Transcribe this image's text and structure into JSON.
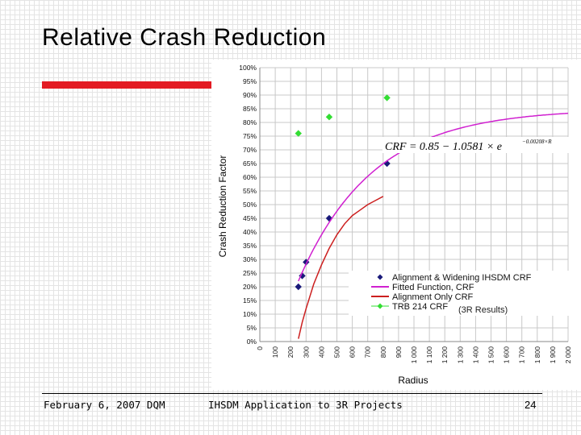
{
  "slide": {
    "title": "Relative Crash Reduction",
    "footer_date": "February 6, 2007 DQM",
    "footer_center": "IHSDM Application to 3R Projects",
    "page_number": "24",
    "accent_color": "#e31b23"
  },
  "chart_data": {
    "type": "scatter",
    "xlabel": "Radius",
    "ylabel": "Crash Reduction Factor",
    "xlim": [
      0,
      2000
    ],
    "ylim": [
      0,
      1.0
    ],
    "x_ticks": [
      0,
      100,
      200,
      300,
      400,
      500,
      600,
      700,
      800,
      900,
      1000,
      1100,
      1200,
      1300,
      1400,
      1500,
      1600,
      1700,
      1800,
      1900,
      2000
    ],
    "x_tick_labels": [
      "0",
      "100",
      "200",
      "300",
      "400",
      "500",
      "600",
      "700",
      "800",
      "900",
      "1 000",
      "1 100",
      "1 200",
      "1 300",
      "1 400",
      "1 500",
      "1 600",
      "1 700",
      "1 800",
      "1 900",
      "2 000"
    ],
    "y_ticks": [
      0,
      0.05,
      0.1,
      0.15,
      0.2,
      0.25,
      0.3,
      0.35,
      0.4,
      0.45,
      0.5,
      0.55,
      0.6,
      0.65,
      0.7,
      0.75,
      0.8,
      0.85,
      0.9,
      0.95,
      1.0
    ],
    "y_tick_labels": [
      "0%",
      "5%",
      "10%",
      "15%",
      "20%",
      "25%",
      "30%",
      "35%",
      "40%",
      "45%",
      "50%",
      "55%",
      "60%",
      "65%",
      "70%",
      "75%",
      "80%",
      "85%",
      "90%",
      "95%",
      "100%"
    ],
    "grid": true,
    "legend_position": "bottom-right",
    "equation": "CRF = 0.85 − 1.0581 × e",
    "equation_exponent": "−0.00208×R",
    "annotation": "(3R Results)",
    "series": [
      {
        "name": "Alignment & Widening IHSDM CRF",
        "kind": "points",
        "marker": "diamond",
        "color": "#1a1a7a",
        "x": [
          250,
          275,
          300,
          450,
          825
        ],
        "y": [
          0.2,
          0.24,
          0.29,
          0.45,
          0.65
        ]
      },
      {
        "name": "Fitted Function, CRF",
        "kind": "line",
        "color": "#d020d0",
        "function": {
          "a": 0.85,
          "b": 1.0581,
          "k": 0.00208
        },
        "x_range": [
          250,
          2000
        ]
      },
      {
        "name": "Alignment Only CRF",
        "kind": "line",
        "color": "#cc1f1f",
        "x": [
          250,
          275,
          300,
          350,
          400,
          450,
          500,
          550,
          600,
          650,
          700,
          750,
          800
        ],
        "y": [
          0.01,
          0.07,
          0.12,
          0.21,
          0.28,
          0.34,
          0.39,
          0.43,
          0.46,
          0.48,
          0.5,
          0.515,
          0.53
        ]
      },
      {
        "name": "TRB 214 CRF",
        "kind": "points",
        "marker": "diamond",
        "color": "#33dd33",
        "x": [
          250,
          450,
          825
        ],
        "y": [
          0.76,
          0.82,
          0.89
        ]
      }
    ]
  }
}
